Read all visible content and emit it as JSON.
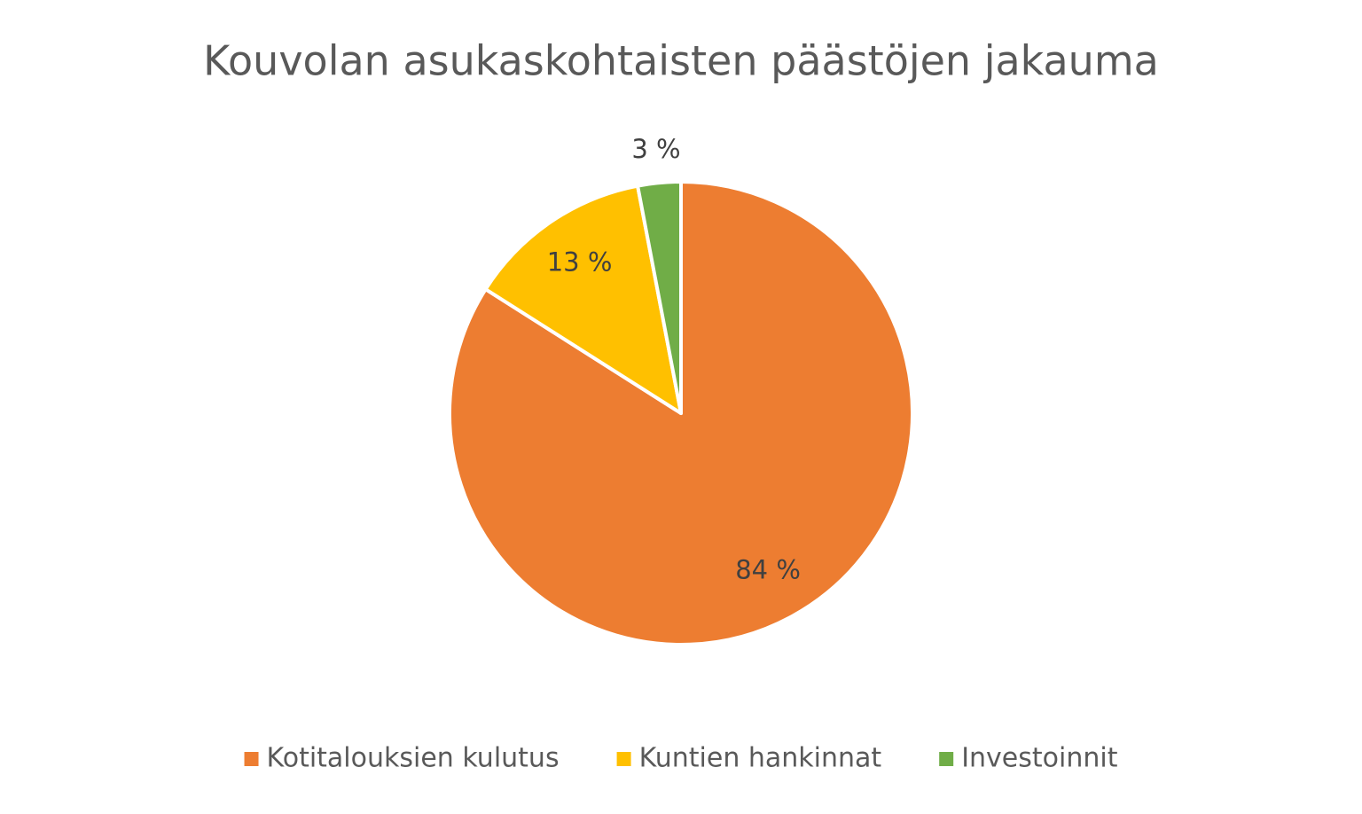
{
  "chart_data": {
    "type": "pie",
    "title": "Kouvolan asukaskohtaisten päästöjen jakauma",
    "categories": [
      "Kotitalouksien kulutus",
      "Kuntien hankinnat",
      "Investoinnit"
    ],
    "values": [
      84,
      13,
      3
    ],
    "value_labels": [
      "84 %",
      "13 %",
      "3 %"
    ],
    "colors": [
      "#ed7d31",
      "#ffc000",
      "#70ad47"
    ],
    "legend": "bottom"
  }
}
